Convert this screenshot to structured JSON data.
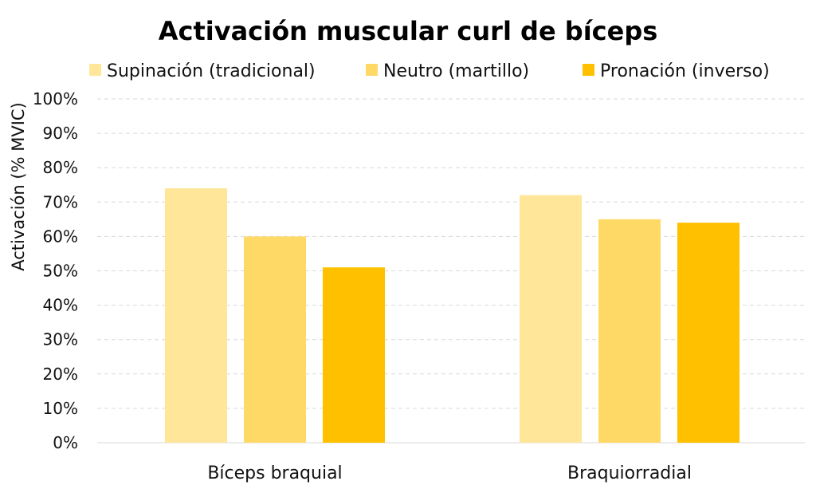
{
  "chart_data": {
    "type": "bar",
    "title": "Activación muscular curl de bíceps",
    "xlabel": "",
    "ylabel": "Activación (% MVIC)",
    "categories": [
      "Bíceps braquial",
      "Braquiorradial"
    ],
    "series": [
      {
        "name": "Supinación (tradicional)",
        "values": [
          74,
          72
        ],
        "color": "#FFE699"
      },
      {
        "name": "Neutro (martillo)",
        "values": [
          60,
          65
        ],
        "color": "#FFD966"
      },
      {
        "name": "Pronación (inverso)",
        "values": [
          51,
          64
        ],
        "color": "#FFC000"
      }
    ],
    "ylim": [
      0,
      100
    ],
    "yticks": [
      0,
      10,
      20,
      30,
      40,
      50,
      60,
      70,
      80,
      90,
      100
    ],
    "ytick_labels": [
      "0%",
      "10%",
      "20%",
      "30%",
      "40%",
      "50%",
      "60%",
      "70%",
      "80%",
      "90%",
      "100%"
    ],
    "grid": true,
    "legend_position": "top"
  }
}
